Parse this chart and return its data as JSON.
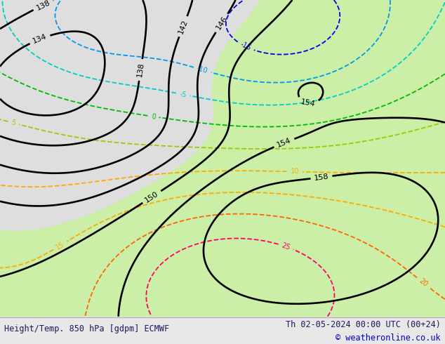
{
  "title_left": "Height/Temp. 850 hPa [gdpm] ECMWF",
  "title_right": "Th 02-05-2024 00:00 UTC (00+24)",
  "copyright": "© weatheronline.co.uk",
  "bg_color": "#e8e8e8",
  "green_fill_color": "#c8f0a0",
  "bottom_bar_color": "#ffffff",
  "title_color": "#1a1a5e",
  "copyright_color": "#0000cc",
  "geopotential_color": "#000000",
  "temp_colors": {
    "very_cold_2": "#880099",
    "cold_1": "#0000ee",
    "cold_2": "#0099ee",
    "cold_3": "#00cccc",
    "neutral": "#00bb00",
    "warm_1": "#99cc00",
    "warm_2": "#ffaa00",
    "warm_3": "#ff6600",
    "warm_4": "#ff0066",
    "warm_5": "#ff0000"
  },
  "figsize": [
    6.34,
    4.9
  ],
  "dpi": 100
}
